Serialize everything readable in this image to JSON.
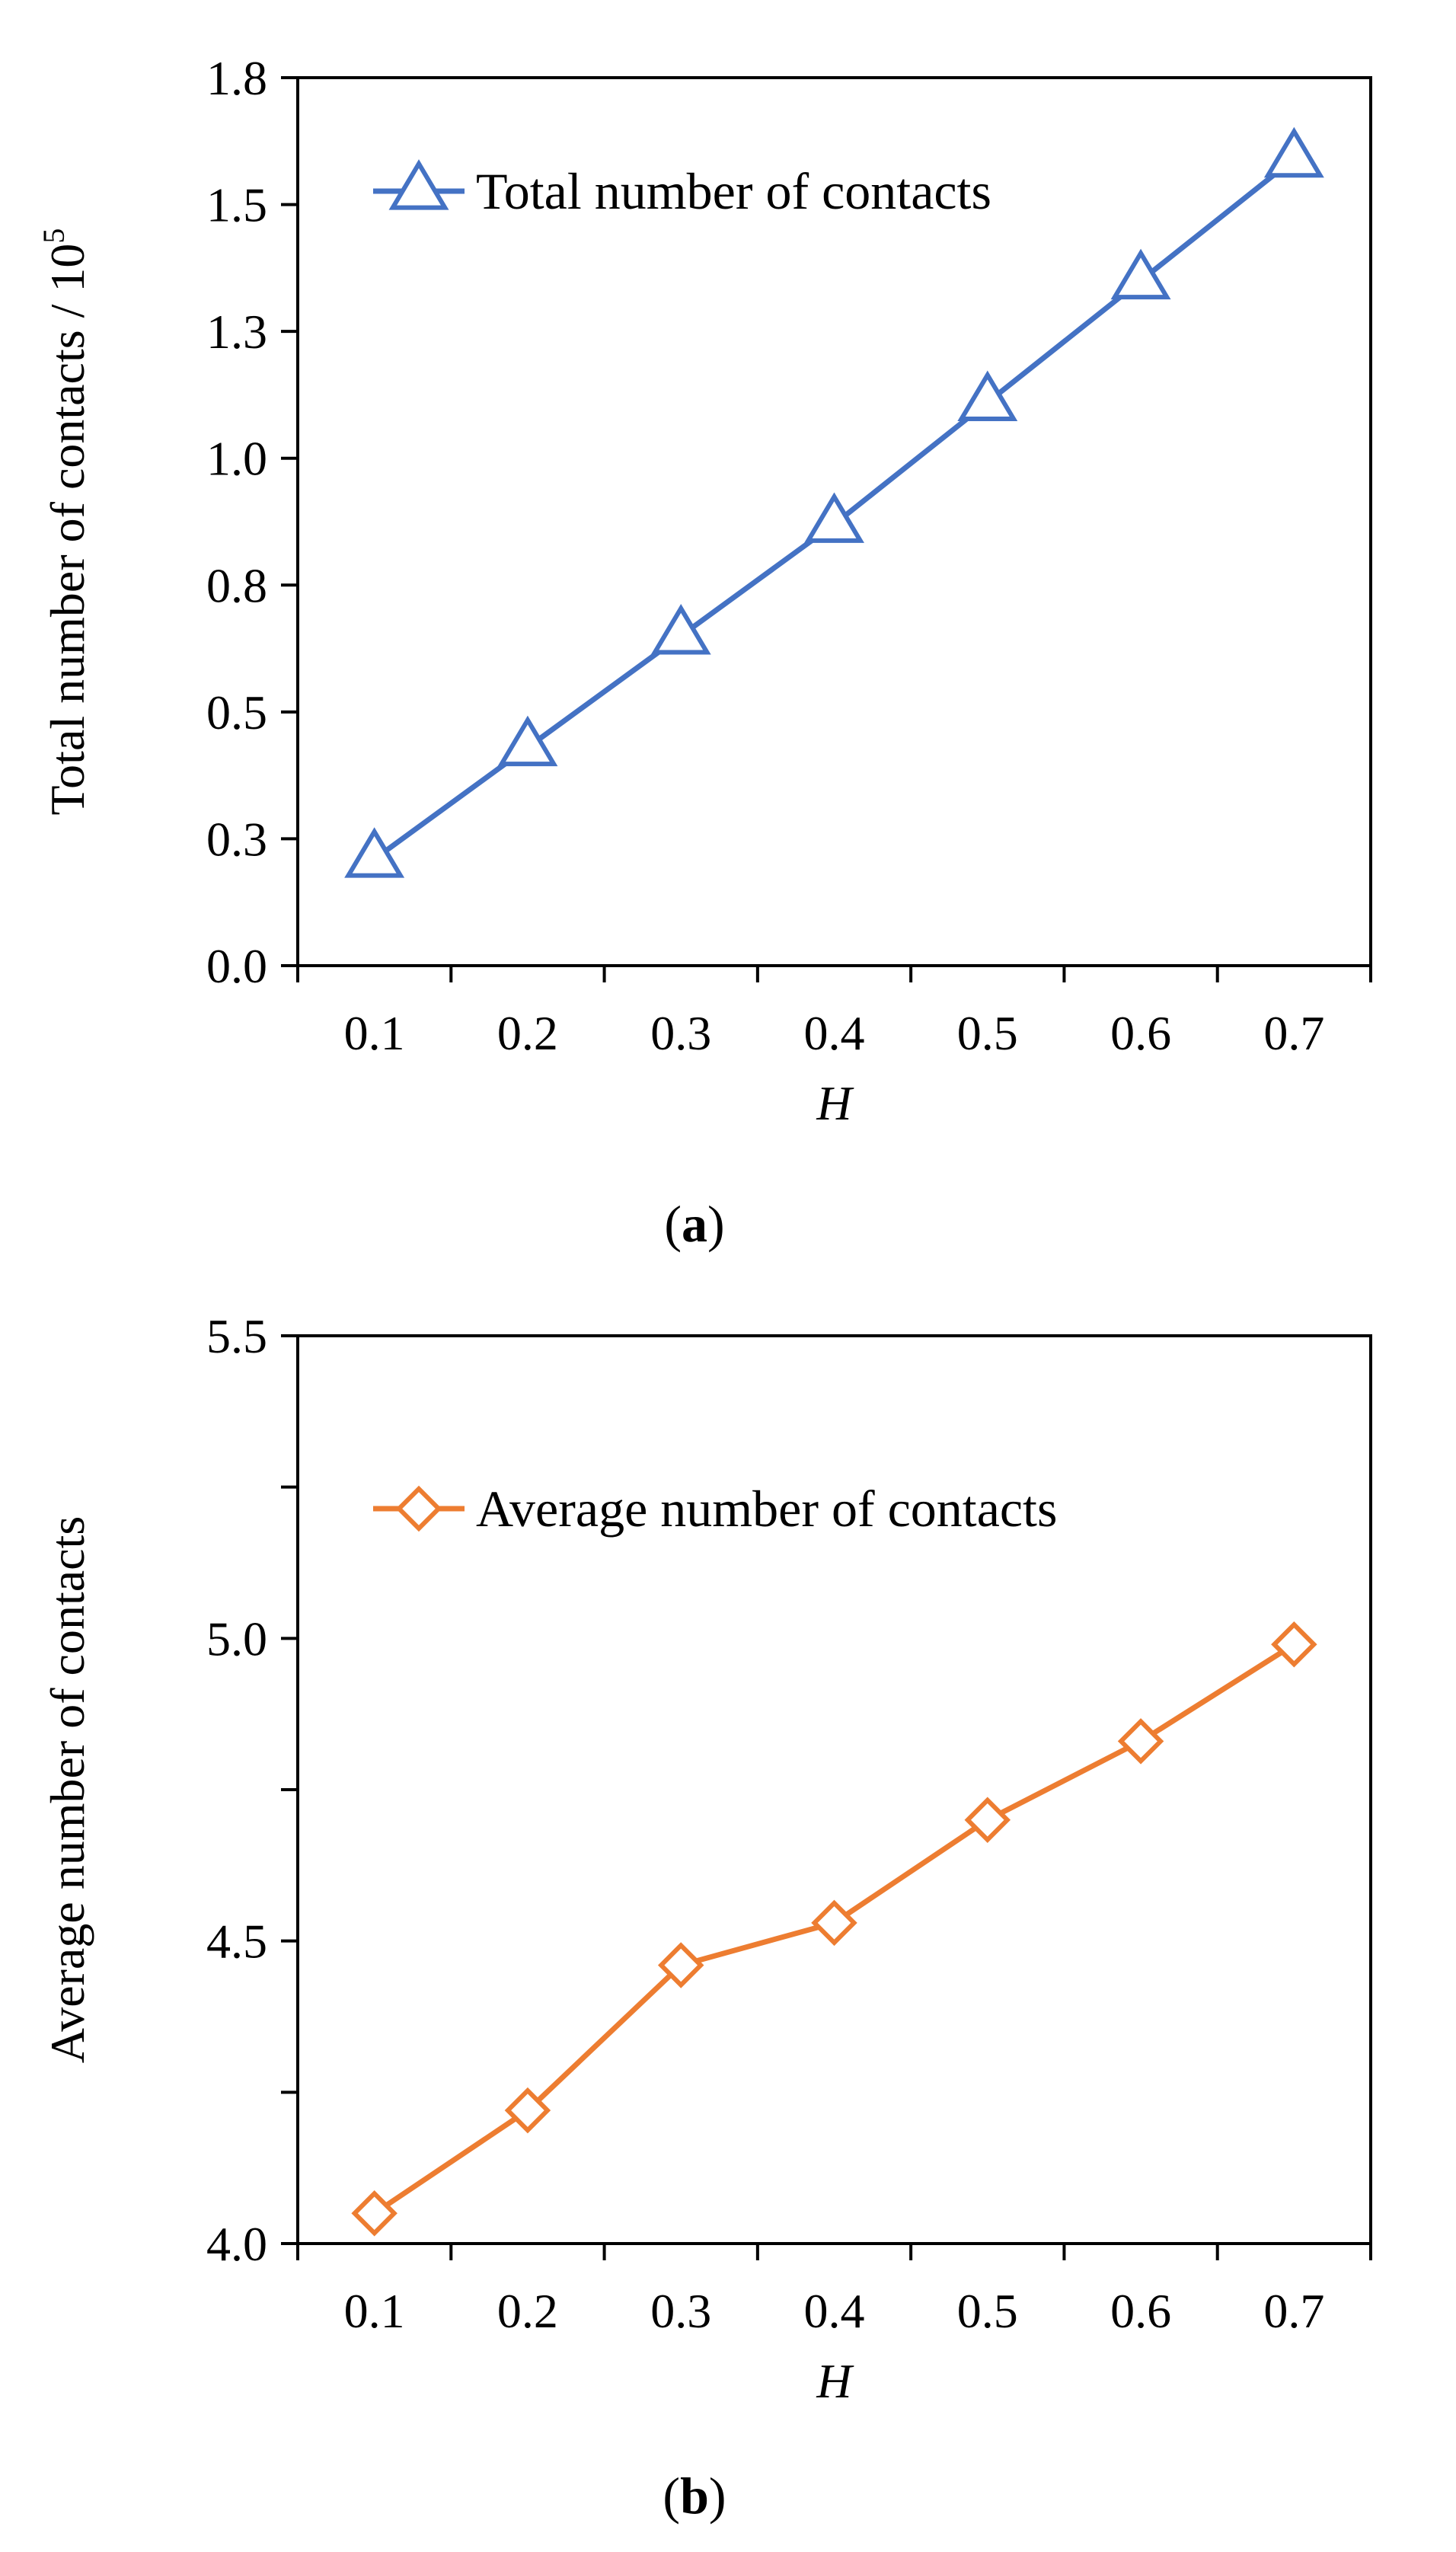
{
  "chart_data": [
    {
      "type": "line",
      "panel": "a",
      "panel_open": "(",
      "panel_close": ")",
      "x": [
        0.1,
        0.2,
        0.3,
        0.4,
        0.5,
        0.6,
        0.7
      ],
      "x_tick_labels": [
        "0.1",
        "0.2",
        "0.3",
        "0.4",
        "0.5",
        "0.6",
        "0.7"
      ],
      "series": [
        {
          "name": "Total number of contacts",
          "values": [
            0.21,
            0.43,
            0.65,
            0.87,
            1.11,
            1.35,
            1.59
          ],
          "color": "#4472C4",
          "marker": "triangle"
        }
      ],
      "ylim": [
        0,
        1.75
      ],
      "y_ticks": [
        0,
        0.25,
        0.5,
        0.75,
        1.0,
        1.25,
        1.5,
        1.75
      ],
      "y_tick_labels": [
        "0.0",
        "0.3",
        "0.5",
        "0.8",
        "1.0",
        "1.3",
        "1.5",
        "1.8"
      ],
      "xlabel": "H",
      "ylabel": "Total number of contacts / 10",
      "ylabel_sup": "5",
      "legend_position": "top-left"
    },
    {
      "type": "line",
      "panel": "b",
      "panel_open": "(",
      "panel_close": ")",
      "x": [
        0.1,
        0.2,
        0.3,
        0.4,
        0.5,
        0.6,
        0.7
      ],
      "x_tick_labels": [
        "0.1",
        "0.2",
        "0.3",
        "0.4",
        "0.5",
        "0.6",
        "0.7"
      ],
      "series": [
        {
          "name": "Average number of contacts",
          "values": [
            4.05,
            4.22,
            4.46,
            4.53,
            4.7,
            4.83,
            4.99
          ],
          "color": "#ED7D31",
          "marker": "diamond"
        }
      ],
      "ylim": [
        4.0,
        5.5
      ],
      "y_ticks": [
        4.0,
        4.5,
        5.0,
        5.5
      ],
      "y_tick_labels": [
        "4.0",
        "4.5",
        "5.0",
        "5.5"
      ],
      "y_minor_ticks": [
        4.25,
        4.75,
        5.25
      ],
      "xlabel": "H",
      "ylabel": "Average number of contacts",
      "legend_position": "top-left"
    }
  ]
}
